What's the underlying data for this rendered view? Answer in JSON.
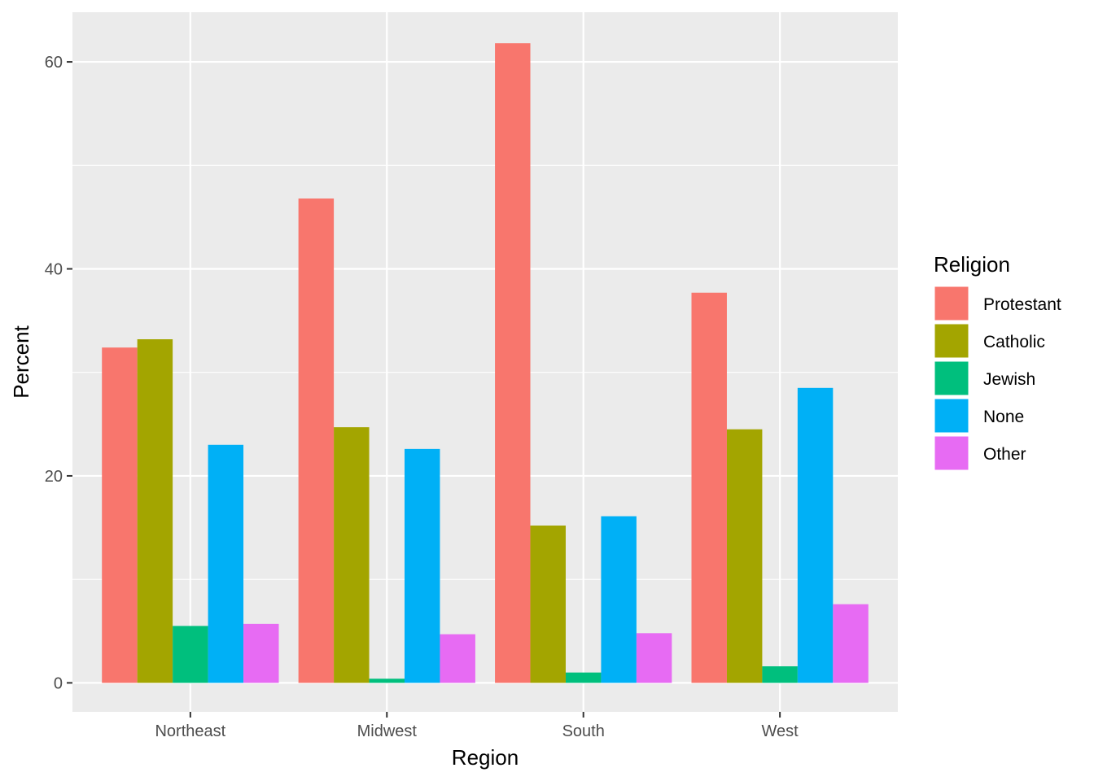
{
  "chart_data": {
    "type": "bar",
    "xlabel": "Region",
    "ylabel": "Percent",
    "categories": [
      "Northeast",
      "Midwest",
      "South",
      "West"
    ],
    "ylim": [
      -2.8,
      64.8
    ],
    "yticks": [
      0,
      20,
      40,
      60
    ],
    "grid": true,
    "legend": {
      "title": "Religion",
      "position": "right"
    },
    "series": [
      {
        "name": "Protestant",
        "color": "#F8766D",
        "values": [
          32.4,
          46.8,
          61.8,
          37.7
        ]
      },
      {
        "name": "Catholic",
        "color": "#A3A500",
        "values": [
          33.2,
          24.7,
          15.2,
          24.5
        ]
      },
      {
        "name": "Jewish",
        "color": "#00BF7D",
        "values": [
          5.5,
          0.4,
          1.0,
          1.6
        ]
      },
      {
        "name": "None",
        "color": "#00B0F6",
        "values": [
          23.0,
          22.6,
          16.1,
          28.5
        ]
      },
      {
        "name": "Other",
        "color": "#E76BF3",
        "values": [
          5.7,
          4.7,
          4.8,
          7.6
        ]
      }
    ]
  }
}
